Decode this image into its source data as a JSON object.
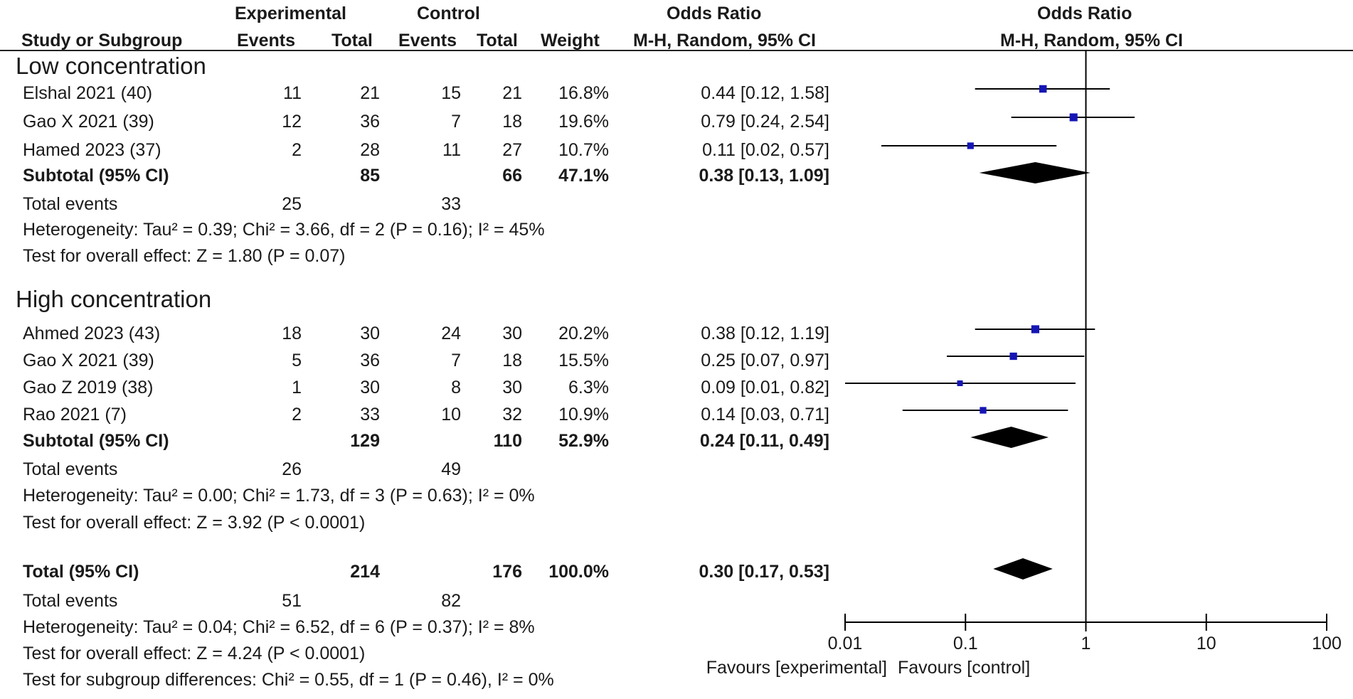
{
  "header": {
    "experimental": "Experimental",
    "control": "Control",
    "or_left": "Odds Ratio",
    "or_right": "Odds Ratio",
    "study": "Study or Subgroup",
    "events1": "Events",
    "total1": "Total",
    "events2": "Events",
    "total2": "Total",
    "weight": "Weight",
    "method_left": "M-H, Random, 95% CI",
    "method_right": "M-H, Random, 95% CI"
  },
  "groups": [
    {
      "title": "Low concentration",
      "studies": [
        {
          "name": "Elshal 2021 (40)",
          "e1": "11",
          "t1": "21",
          "e2": "15",
          "t2": "21",
          "weight": "16.8%",
          "ci": "0.44 [0.12, 1.58]"
        },
        {
          "name": "Gao X 2021 (39)",
          "e1": "12",
          "t1": "36",
          "e2": "7",
          "t2": "18",
          "weight": "19.6%",
          "ci": "0.79 [0.24, 2.54]"
        },
        {
          "name": "Hamed 2023 (37)",
          "e1": "2",
          "t1": "28",
          "e2": "11",
          "t2": "27",
          "weight": "10.7%",
          "ci": "0.11 [0.02, 0.57]"
        }
      ],
      "subtotal": {
        "label": "Subtotal (95% CI)",
        "t1": "85",
        "t2": "66",
        "weight": "47.1%",
        "ci": "0.38 [0.13, 1.09]"
      },
      "events": {
        "label": "Total events",
        "e1": "25",
        "e2": "33"
      },
      "heterogeneity": "Heterogeneity: Tau² = 0.39; Chi² = 3.66, df = 2 (P = 0.16); I² = 45%",
      "overall": "Test for overall effect: Z = 1.80 (P = 0.07)"
    },
    {
      "title": "High concentration",
      "studies": [
        {
          "name": "Ahmed 2023 (43)",
          "e1": "18",
          "t1": "30",
          "e2": "24",
          "t2": "30",
          "weight": "20.2%",
          "ci": "0.38 [0.12, 1.19]"
        },
        {
          "name": "Gao X 2021 (39)",
          "e1": "5",
          "t1": "36",
          "e2": "7",
          "t2": "18",
          "weight": "15.5%",
          "ci": "0.25 [0.07, 0.97]"
        },
        {
          "name": "Gao Z 2019 (38)",
          "e1": "1",
          "t1": "30",
          "e2": "8",
          "t2": "30",
          "weight": "6.3%",
          "ci": "0.09 [0.01, 0.82]"
        },
        {
          "name": "Rao 2021 (7)",
          "e1": "2",
          "t1": "33",
          "e2": "10",
          "t2": "32",
          "weight": "10.9%",
          "ci": "0.14 [0.03, 0.71]"
        }
      ],
      "subtotal": {
        "label": "Subtotal (95% CI)",
        "t1": "129",
        "t2": "110",
        "weight": "52.9%",
        "ci": "0.24 [0.11, 0.49]"
      },
      "events": {
        "label": "Total events",
        "e1": "26",
        "e2": "49"
      },
      "heterogeneity": "Heterogeneity: Tau² = 0.00; Chi² = 1.73, df = 3 (P = 0.63); I² = 0%",
      "overall": "Test for overall effect: Z = 3.92 (P < 0.0001)"
    }
  ],
  "total": {
    "label": "Total (95% CI)",
    "t1": "214",
    "t2": "176",
    "weight": "100.0%",
    "ci": "0.30 [0.17, 0.53]",
    "events": {
      "label": "Total events",
      "e1": "51",
      "e2": "82"
    },
    "heterogeneity": "Heterogeneity: Tau² = 0.04; Chi² = 6.52, df = 6 (P = 0.37); I² = 8%",
    "overall": "Test for overall effect: Z = 4.24 (P < 0.0001)",
    "subgroup": "Test for subgroup differences: Chi² = 0.55, df = 1 (P = 0.46), I² = 0%"
  },
  "axis": {
    "ticks": [
      "0.01",
      "0.1",
      "1",
      "10",
      "100"
    ],
    "favours_left": "Favours [experimental]",
    "favours_right": "Favours [control]"
  },
  "colors": {
    "marker": "#1515b5",
    "diamond": "#000000",
    "line": "#000000"
  },
  "chart_data": {
    "type": "forest",
    "scale": "log",
    "xlim": [
      0.01,
      100
    ],
    "ticks": [
      0.01,
      0.1,
      1,
      10,
      100
    ],
    "reference_line": 1,
    "points": [
      {
        "label": "Elshal 2021 (40)",
        "or": 0.44,
        "lo": 0.12,
        "hi": 1.58,
        "weight": 16.8
      },
      {
        "label": "Gao X 2021 (39)",
        "or": 0.79,
        "lo": 0.24,
        "hi": 2.54,
        "weight": 19.6
      },
      {
        "label": "Hamed 2023 (37)",
        "or": 0.11,
        "lo": 0.02,
        "hi": 0.57,
        "weight": 10.7
      },
      {
        "label": "Ahmed 2023 (43)",
        "or": 0.38,
        "lo": 0.12,
        "hi": 1.19,
        "weight": 20.2
      },
      {
        "label": "Gao X 2021 (39)",
        "or": 0.25,
        "lo": 0.07,
        "hi": 0.97,
        "weight": 15.5
      },
      {
        "label": "Gao Z 2019 (38)",
        "or": 0.09,
        "lo": 0.01,
        "hi": 0.82,
        "weight": 6.3
      },
      {
        "label": "Rao 2021 (7)",
        "or": 0.14,
        "lo": 0.03,
        "hi": 0.71,
        "weight": 10.9
      }
    ],
    "diamonds": [
      {
        "label": "Subtotal Low concentration",
        "or": 0.38,
        "lo": 0.13,
        "hi": 1.09
      },
      {
        "label": "Subtotal High concentration",
        "or": 0.24,
        "lo": 0.11,
        "hi": 0.49
      },
      {
        "label": "Total",
        "or": 0.3,
        "lo": 0.17,
        "hi": 0.53
      }
    ],
    "xlabel_left": "Favours [experimental]",
    "xlabel_right": "Favours [control]"
  }
}
